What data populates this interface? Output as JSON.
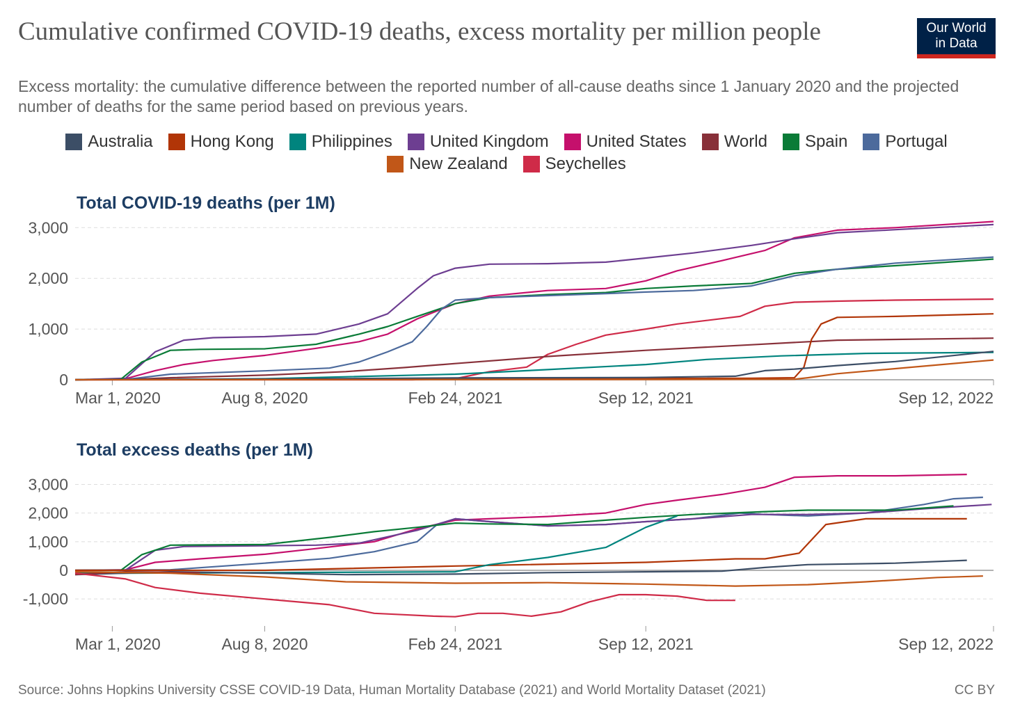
{
  "header": {
    "title": "Cumulative confirmed COVID-19 deaths, excess mortality per million people",
    "subtitle": "Excess mortality: the cumulative difference between the reported number of all-cause deaths since 1 January 2020 and the projected number of deaths for the same period based on previous years.",
    "logo_line1": "Our World",
    "logo_line2": "in Data"
  },
  "legend": [
    {
      "name": "Australia",
      "color": "#3c4e66"
    },
    {
      "name": "Hong Kong",
      "color": "#b13507"
    },
    {
      "name": "Philippines",
      "color": "#00847e"
    },
    {
      "name": "United Kingdom",
      "color": "#6d3e91"
    },
    {
      "name": "United States",
      "color": "#c5106c"
    },
    {
      "name": "World",
      "color": "#883039"
    },
    {
      "name": "Spain",
      "color": "#0a7b37"
    },
    {
      "name": "Portugal",
      "color": "#4c6a9c"
    },
    {
      "name": "New Zealand",
      "color": "#c15718"
    },
    {
      "name": "Seychelles",
      "color": "#cf2b48"
    }
  ],
  "footer": {
    "source": "Source: Johns Hopkins University CSSE COVID-19 Data, Human Mortality Database (2021) and World Mortality Dataset (2021)",
    "license": "CC BY"
  },
  "chart_data": [
    {
      "type": "line",
      "title": "Total COVID-19 deaths (per 1M)",
      "x_ticks": [
        "2020-03-01",
        "2020-08-08",
        "2021-02-24",
        "2021-09-12",
        "2022-09-12"
      ],
      "x_tick_labels": [
        "Mar 1, 2020",
        "Aug 8, 2020",
        "Feb 24, 2021",
        "Sep 12, 2021",
        "Sep 12, 2022"
      ],
      "xlim": [
        "2020-01-22",
        "2022-09-12"
      ],
      "y_ticks": [
        0,
        1000,
        2000,
        3000
      ],
      "y_tick_labels": [
        "0",
        "1,000",
        "2,000",
        "3,000"
      ],
      "ylim": [
        0,
        3100
      ],
      "grid": true,
      "series": [
        {
          "name": "United States",
          "color": "#c5106c",
          "x": [
            "2020-01-22",
            "2020-03-15",
            "2020-04-15",
            "2020-05-15",
            "2020-06-15",
            "2020-08-08",
            "2020-10-01",
            "2020-11-15",
            "2020-12-15",
            "2021-01-15",
            "2021-02-24",
            "2021-04-01",
            "2021-06-01",
            "2021-08-01",
            "2021-09-12",
            "2021-10-15",
            "2021-12-01",
            "2022-01-15",
            "2022-02-15",
            "2022-04-01",
            "2022-06-01",
            "2022-09-12"
          ],
          "y": [
            0,
            20,
            180,
            300,
            380,
            480,
            620,
            750,
            900,
            1200,
            1500,
            1650,
            1760,
            1800,
            1950,
            2150,
            2350,
            2550,
            2800,
            2950,
            3000,
            3120
          ]
        },
        {
          "name": "United Kingdom",
          "color": "#6d3e91",
          "x": [
            "2020-01-22",
            "2020-03-15",
            "2020-04-15",
            "2020-05-15",
            "2020-06-15",
            "2020-08-08",
            "2020-10-01",
            "2020-11-15",
            "2020-12-15",
            "2021-01-15",
            "2021-02-01",
            "2021-02-24",
            "2021-04-01",
            "2021-06-01",
            "2021-08-01",
            "2021-09-12",
            "2021-11-01",
            "2022-01-01",
            "2022-02-15",
            "2022-04-01",
            "2022-06-01",
            "2022-09-12"
          ],
          "y": [
            0,
            30,
            550,
            780,
            830,
            850,
            900,
            1100,
            1300,
            1800,
            2050,
            2200,
            2280,
            2290,
            2320,
            2400,
            2500,
            2650,
            2780,
            2900,
            2960,
            3060
          ]
        },
        {
          "name": "Spain",
          "color": "#0a7b37",
          "x": [
            "2020-01-22",
            "2020-03-10",
            "2020-04-01",
            "2020-05-01",
            "2020-06-01",
            "2020-08-08",
            "2020-10-01",
            "2020-11-15",
            "2020-12-15",
            "2021-01-15",
            "2021-02-24",
            "2021-04-01",
            "2021-06-01",
            "2021-08-01",
            "2021-09-12",
            "2021-11-01",
            "2022-01-01",
            "2022-02-15",
            "2022-04-01",
            "2022-06-01",
            "2022-09-12"
          ],
          "y": [
            0,
            10,
            350,
            580,
            600,
            610,
            700,
            900,
            1050,
            1250,
            1500,
            1620,
            1680,
            1720,
            1800,
            1850,
            1900,
            2100,
            2180,
            2250,
            2380
          ]
        },
        {
          "name": "Portugal",
          "color": "#4c6a9c",
          "x": [
            "2020-01-22",
            "2020-03-15",
            "2020-05-01",
            "2020-08-08",
            "2020-10-15",
            "2020-11-15",
            "2020-12-15",
            "2021-01-10",
            "2021-01-25",
            "2021-02-10",
            "2021-02-24",
            "2021-04-01",
            "2021-06-01",
            "2021-08-01",
            "2021-09-12",
            "2021-11-01",
            "2022-01-01",
            "2022-02-15",
            "2022-04-01",
            "2022-06-01",
            "2022-09-12"
          ],
          "y": [
            0,
            5,
            110,
            175,
            230,
            350,
            550,
            750,
            1050,
            1400,
            1570,
            1620,
            1660,
            1700,
            1730,
            1760,
            1850,
            2050,
            2180,
            2300,
            2420
          ]
        },
        {
          "name": "Seychelles",
          "color": "#cf2b48",
          "x": [
            "2020-01-22",
            "2021-01-10",
            "2021-02-24",
            "2021-04-01",
            "2021-05-10",
            "2021-06-01",
            "2021-07-01",
            "2021-08-01",
            "2021-09-12",
            "2021-10-15",
            "2021-11-15",
            "2021-12-20",
            "2022-01-15",
            "2022-02-15",
            "2022-04-01",
            "2022-06-01",
            "2022-09-12"
          ],
          "y": [
            0,
            0,
            20,
            160,
            250,
            500,
            700,
            880,
            1000,
            1100,
            1170,
            1250,
            1450,
            1530,
            1550,
            1570,
            1590
          ]
        },
        {
          "name": "World",
          "color": "#883039",
          "x": [
            "2020-01-22",
            "2020-03-15",
            "2020-05-01",
            "2020-08-08",
            "2020-11-01",
            "2021-01-01",
            "2021-02-24",
            "2021-06-01",
            "2021-09-12",
            "2022-01-01",
            "2022-04-01",
            "2022-09-12"
          ],
          "y": [
            0,
            2,
            40,
            90,
            160,
            240,
            320,
            460,
            580,
            690,
            780,
            820
          ]
        },
        {
          "name": "Hong Kong",
          "color": "#b13507",
          "x": [
            "2020-01-22",
            "2021-06-01",
            "2022-01-01",
            "2022-02-15",
            "2022-02-25",
            "2022-03-05",
            "2022-03-15",
            "2022-04-01",
            "2022-06-01",
            "2022-09-12"
          ],
          "y": [
            0,
            20,
            30,
            40,
            250,
            800,
            1100,
            1230,
            1250,
            1300
          ]
        },
        {
          "name": "Philippines",
          "color": "#00847e",
          "x": [
            "2020-01-22",
            "2020-05-01",
            "2020-08-08",
            "2021-02-24",
            "2021-06-01",
            "2021-09-12",
            "2021-11-15",
            "2022-02-01",
            "2022-05-01",
            "2022-09-12"
          ],
          "y": [
            0,
            5,
            20,
            110,
            200,
            300,
            400,
            470,
            520,
            540
          ]
        },
        {
          "name": "Australia",
          "color": "#3c4e66",
          "x": [
            "2020-01-22",
            "2020-08-08",
            "2021-02-24",
            "2021-09-12",
            "2021-12-15",
            "2022-01-15",
            "2022-02-15",
            "2022-04-01",
            "2022-06-01",
            "2022-09-12"
          ],
          "y": [
            0,
            15,
            35,
            45,
            70,
            180,
            210,
            280,
            360,
            560
          ]
        },
        {
          "name": "New Zealand",
          "color": "#c15718",
          "x": [
            "2020-01-22",
            "2021-09-12",
            "2022-02-15",
            "2022-03-01",
            "2022-04-01",
            "2022-06-01",
            "2022-09-12"
          ],
          "y": [
            0,
            5,
            10,
            40,
            120,
            220,
            390
          ]
        }
      ]
    },
    {
      "type": "line",
      "title": "Total excess deaths (per 1M)",
      "x_ticks": [
        "2020-03-01",
        "2020-08-08",
        "2021-02-24",
        "2021-09-12",
        "2022-09-12"
      ],
      "x_tick_labels": [
        "Mar 1, 2020",
        "Aug 8, 2020",
        "Feb 24, 2021",
        "Sep 12, 2021",
        "Sep 12, 2022"
      ],
      "xlim": [
        "2020-01-22",
        "2022-09-12"
      ],
      "y_ticks": [
        -1000,
        0,
        1000,
        2000,
        3000
      ],
      "y_tick_labels": [
        "-1,000",
        "0",
        "1,000",
        "2,000",
        "3,000"
      ],
      "ylim": [
        -1700,
        3400
      ],
      "grid": true,
      "series": [
        {
          "name": "United States",
          "color": "#c5106c",
          "x": [
            "2020-01-22",
            "2020-03-15",
            "2020-04-15",
            "2020-06-01",
            "2020-08-08",
            "2020-10-01",
            "2020-12-01",
            "2021-01-15",
            "2021-02-24",
            "2021-04-01",
            "2021-06-01",
            "2021-08-01",
            "2021-09-12",
            "2021-10-15",
            "2021-12-01",
            "2022-01-15",
            "2022-02-15",
            "2022-04-01",
            "2022-06-01",
            "2022-08-15"
          ],
          "y": [
            0,
            20,
            280,
            400,
            560,
            760,
            1000,
            1450,
            1750,
            1800,
            1880,
            2000,
            2300,
            2450,
            2650,
            2900,
            3250,
            3300,
            3300,
            3350
          ]
        },
        {
          "name": "Portugal",
          "color": "#4c6a9c",
          "x": [
            "2020-01-22",
            "2020-05-01",
            "2020-08-08",
            "2020-10-15",
            "2020-12-01",
            "2021-01-15",
            "2021-02-05",
            "2021-02-24",
            "2021-04-01",
            "2021-06-01",
            "2021-08-01",
            "2021-09-12",
            "2021-11-01",
            "2021-12-20",
            "2022-01-15",
            "2022-03-01",
            "2022-05-01",
            "2022-07-01",
            "2022-08-01",
            "2022-09-01"
          ],
          "y": [
            0,
            20,
            250,
            420,
            650,
            1000,
            1600,
            1800,
            1700,
            1550,
            1600,
            1700,
            1800,
            2000,
            1950,
            1900,
            2000,
            2300,
            2500,
            2550
          ]
        },
        {
          "name": "United Kingdom",
          "color": "#6d3e91",
          "x": [
            "2020-01-22",
            "2020-03-15",
            "2020-04-15",
            "2020-05-15",
            "2020-08-08",
            "2020-10-01",
            "2020-11-15",
            "2021-01-15",
            "2021-02-24",
            "2021-04-01",
            "2021-06-01",
            "2021-08-01",
            "2021-09-12",
            "2021-11-01",
            "2022-01-01",
            "2022-03-01",
            "2022-05-01",
            "2022-07-01",
            "2022-09-10"
          ],
          "y": [
            0,
            10,
            700,
            830,
            860,
            880,
            950,
            1400,
            1800,
            1700,
            1550,
            1600,
            1700,
            1800,
            1950,
            1950,
            2000,
            2150,
            2300
          ]
        },
        {
          "name": "Spain",
          "color": "#0a7b37",
          "x": [
            "2020-01-22",
            "2020-03-10",
            "2020-04-01",
            "2020-05-01",
            "2020-08-08",
            "2020-10-15",
            "2020-12-01",
            "2021-01-15",
            "2021-02-24",
            "2021-04-01",
            "2021-06-01",
            "2021-08-01",
            "2021-09-12",
            "2021-11-01",
            "2022-01-15",
            "2022-03-01",
            "2022-06-01",
            "2022-08-01"
          ],
          "y": [
            0,
            0,
            550,
            880,
            900,
            1150,
            1350,
            1500,
            1650,
            1620,
            1600,
            1750,
            1850,
            1950,
            2050,
            2100,
            2100,
            2250
          ]
        },
        {
          "name": "Hong Kong",
          "color": "#b13507",
          "x": [
            "2020-01-22",
            "2020-08-08",
            "2021-02-24",
            "2021-09-12",
            "2021-12-15",
            "2022-01-15",
            "2022-02-20",
            "2022-03-20",
            "2022-05-01",
            "2022-06-01",
            "2022-08-15"
          ],
          "y": [
            0,
            0,
            150,
            280,
            400,
            400,
            600,
            1600,
            1800,
            1800,
            1800
          ]
        },
        {
          "name": "Philippines",
          "color": "#00847e",
          "x": [
            "2020-01-22",
            "2020-03-15",
            "2020-08-08",
            "2021-02-24",
            "2021-04-01",
            "2021-06-01",
            "2021-08-01",
            "2021-09-12",
            "2021-10-15"
          ],
          "y": [
            -100,
            -100,
            -80,
            -50,
            200,
            450,
            800,
            1500,
            1900
          ]
        },
        {
          "name": "Australia",
          "color": "#3c4e66",
          "x": [
            "2020-01-22",
            "2020-05-01",
            "2020-08-08",
            "2020-11-01",
            "2021-02-24",
            "2021-06-01",
            "2021-09-12",
            "2021-12-01",
            "2022-01-15",
            "2022-03-01",
            "2022-06-01",
            "2022-08-15"
          ],
          "y": [
            -150,
            -50,
            -100,
            -150,
            -130,
            -80,
            -50,
            -30,
            100,
            200,
            250,
            350
          ]
        },
        {
          "name": "World",
          "color": "#883039",
          "x": [
            "2020-01-22",
            "2020-03-15",
            "2020-06-01"
          ],
          "y": [
            -150,
            -50,
            -80
          ]
        },
        {
          "name": "New Zealand",
          "color": "#c15718",
          "x": [
            "2020-01-22",
            "2020-05-01",
            "2020-08-08",
            "2020-11-01",
            "2021-02-24",
            "2021-06-01",
            "2021-09-12",
            "2021-12-15",
            "2022-03-01",
            "2022-05-01",
            "2022-07-15",
            "2022-09-01"
          ],
          "y": [
            -50,
            -100,
            -230,
            -400,
            -450,
            -430,
            -480,
            -550,
            -500,
            -400,
            -250,
            -200
          ]
        },
        {
          "name": "Seychelles",
          "color": "#cf2b48",
          "x": [
            "2020-01-22",
            "2020-03-15",
            "2020-04-15",
            "2020-06-01",
            "2020-08-08",
            "2020-10-15",
            "2020-12-01",
            "2021-01-01",
            "2021-02-01",
            "2021-02-24",
            "2021-03-20",
            "2021-04-15",
            "2021-05-15",
            "2021-06-15",
            "2021-07-15",
            "2021-08-15",
            "2021-09-12",
            "2021-10-15",
            "2021-11-15",
            "2021-12-15"
          ],
          "y": [
            -100,
            -300,
            -600,
            -800,
            -1000,
            -1200,
            -1500,
            -1550,
            -1600,
            -1620,
            -1500,
            -1500,
            -1600,
            -1450,
            -1100,
            -850,
            -850,
            -900,
            -1050,
            -1050
          ]
        }
      ]
    }
  ]
}
